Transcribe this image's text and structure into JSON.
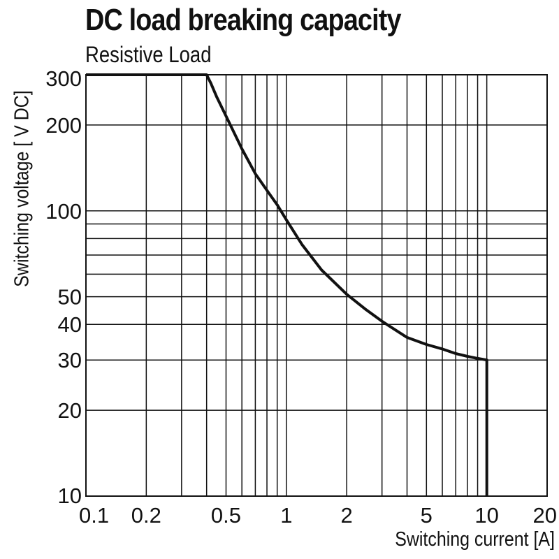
{
  "chart_data": {
    "type": "line",
    "title": "DC load breaking capacity",
    "subtitle": "Resistive Load",
    "xlabel": "Switching current [A]",
    "ylabel": "Switching voltage [ V DC]",
    "xscale": "log",
    "yscale": "log",
    "xlim": [
      0.1,
      20
    ],
    "ylim": [
      10,
      300
    ],
    "grid": true,
    "x_ticks": [
      0.1,
      0.2,
      0.5,
      1,
      2,
      5,
      10,
      20
    ],
    "x_tick_labels": [
      "0.1",
      "0.2",
      "0.5",
      "1",
      "2",
      "5",
      "10",
      "20"
    ],
    "y_ticks": [
      10,
      20,
      30,
      40,
      50,
      100,
      200,
      300
    ],
    "y_tick_labels": [
      "10",
      "20",
      "30",
      "40",
      "50",
      "100",
      "200",
      "300"
    ],
    "x_gridlines": [
      0.2,
      0.3,
      0.4,
      0.5,
      0.6,
      0.7,
      0.8,
      0.9,
      1,
      2,
      3,
      4,
      5,
      6,
      7,
      8,
      9,
      10
    ],
    "y_gridlines": [
      20,
      30,
      40,
      50,
      60,
      70,
      80,
      90,
      100,
      200
    ],
    "series": [
      {
        "x": [
          0.1,
          0.4,
          0.42,
          0.45,
          0.5,
          0.6,
          0.7,
          0.8,
          0.9,
          1.0,
          1.2,
          1.5,
          2.0,
          2.5,
          3.0,
          4.0,
          5.0,
          6.0,
          7.0,
          8.0,
          9.0,
          10.0,
          10.0
        ],
        "y": [
          300,
          300,
          280,
          250,
          215,
          165,
          135,
          118,
          105,
          93,
          76,
          62,
          51,
          45,
          41,
          36,
          34,
          32.8,
          31.6,
          30.9,
          30.4,
          30,
          10
        ]
      }
    ],
    "color": "#111111"
  }
}
